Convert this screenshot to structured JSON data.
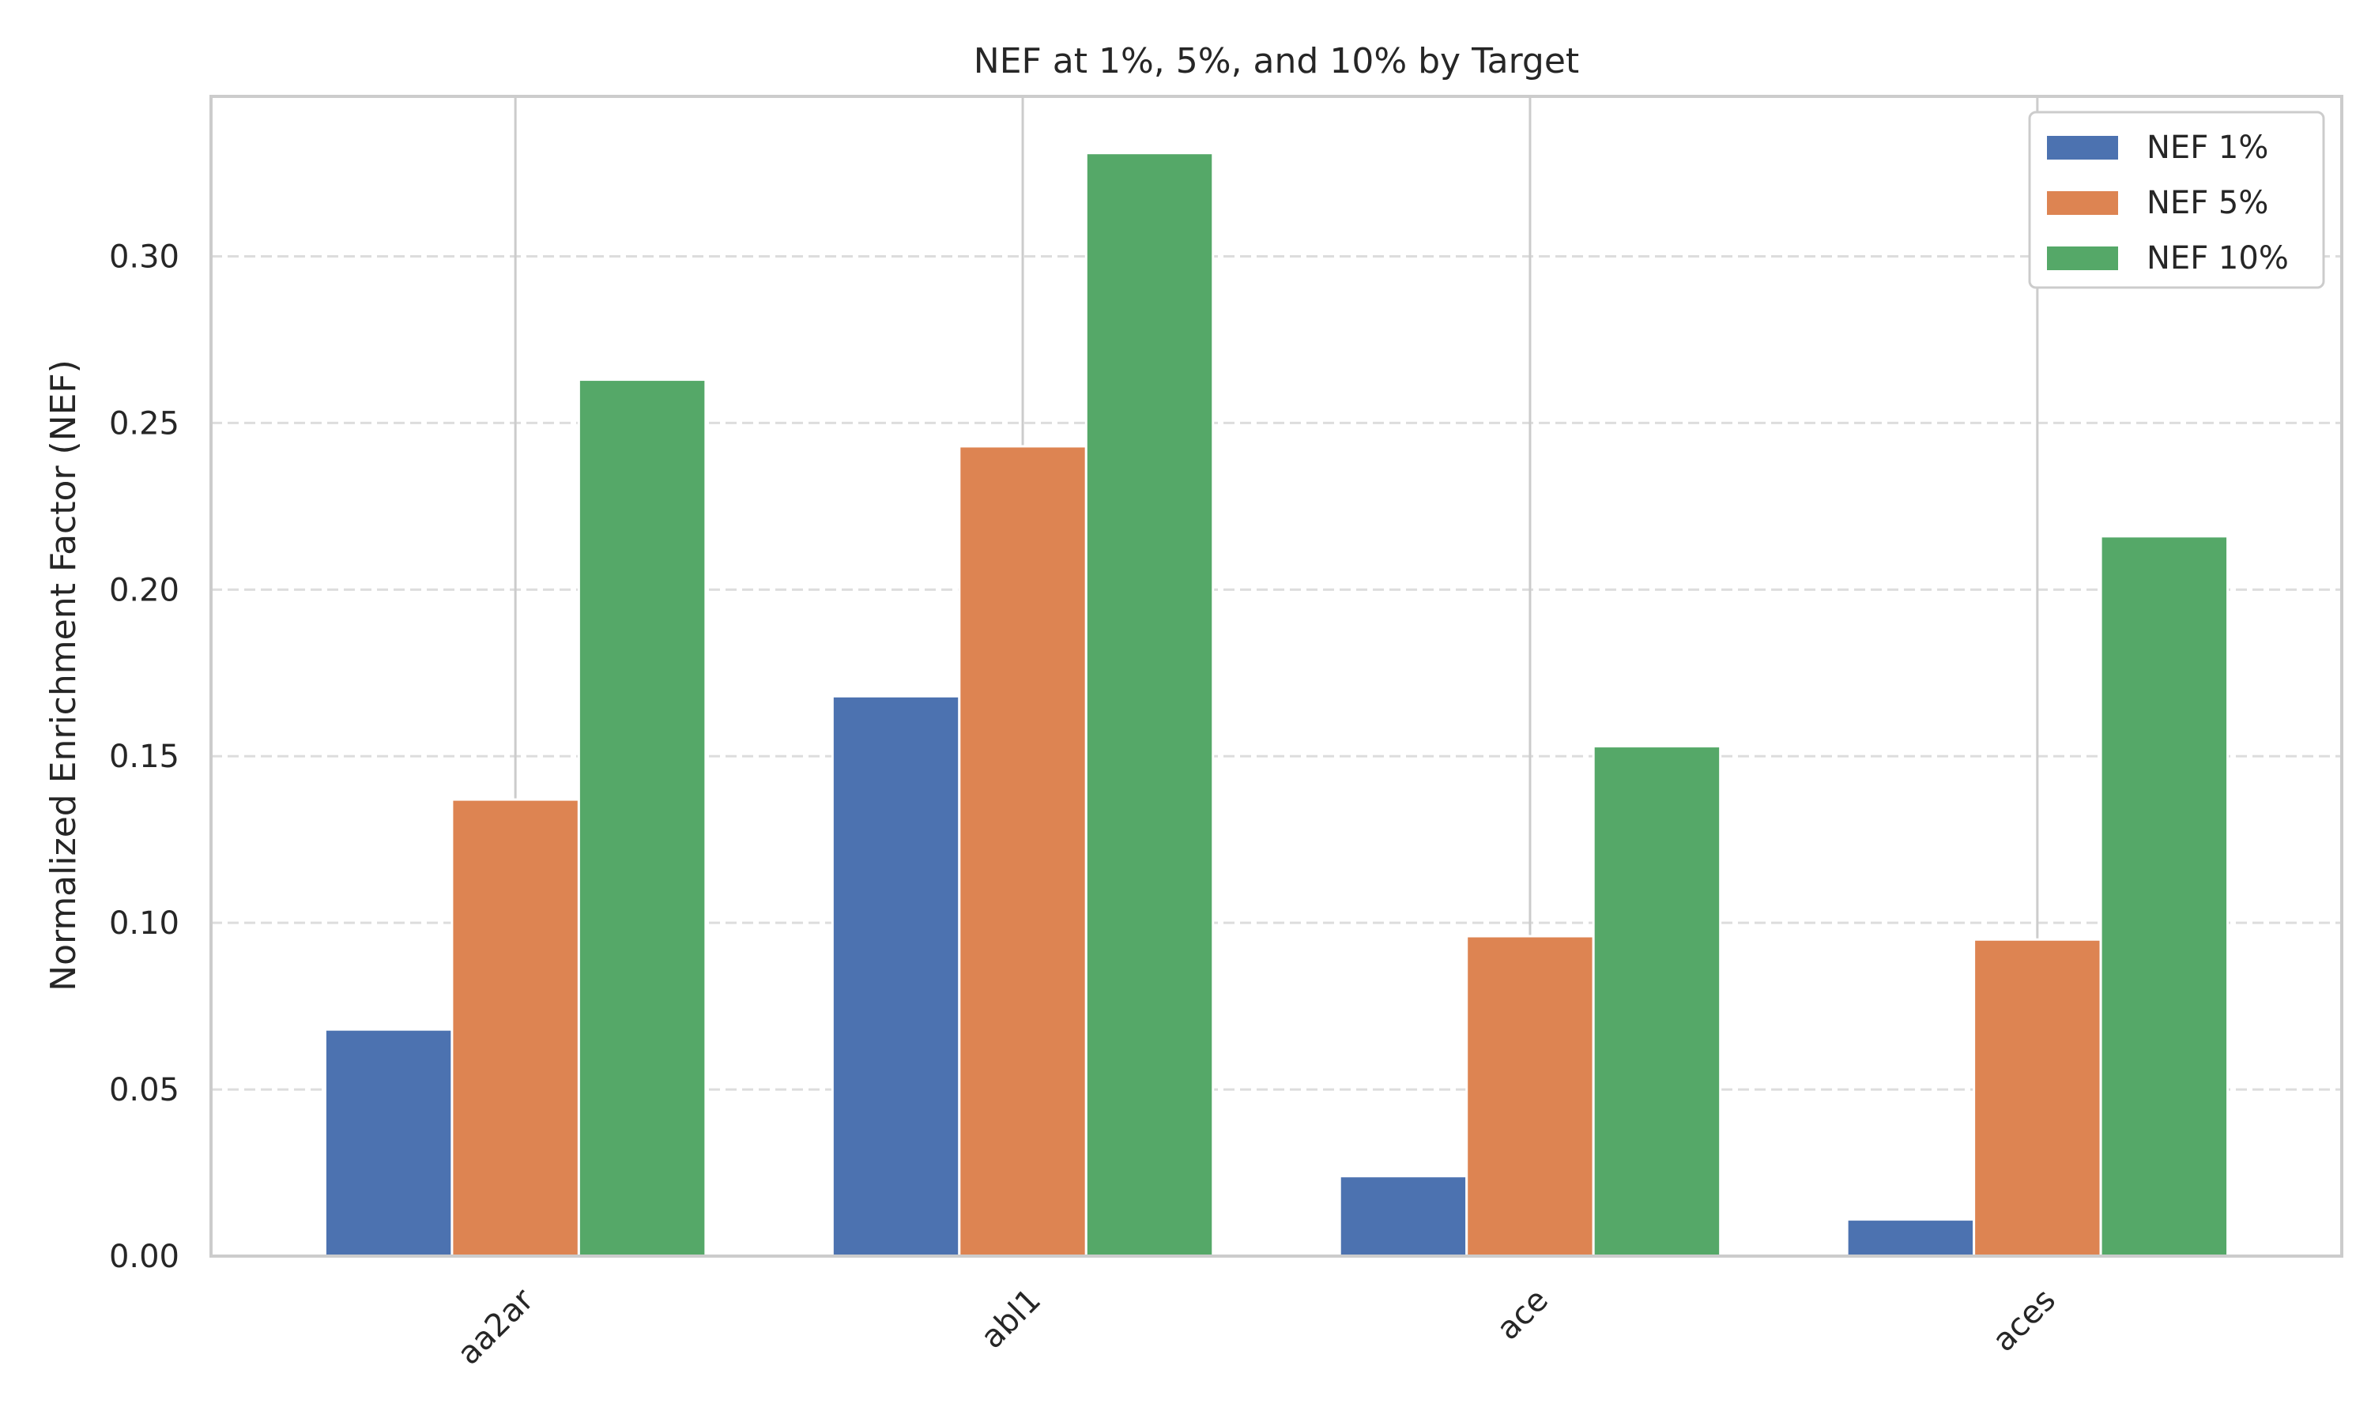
{
  "chart_data": {
    "type": "bar",
    "title": "NEF at 1%, 5%, and 10% by Target",
    "xlabel": "",
    "ylabel": "Normalized Enrichment Factor (NEF)",
    "categories": [
      "aa2ar",
      "abl1",
      "ace",
      "aces"
    ],
    "series": [
      {
        "name": "NEF 1%",
        "color": "#4c72b0",
        "values": [
          0.068,
          0.168,
          0.024,
          0.011
        ]
      },
      {
        "name": "NEF 5%",
        "color": "#dd8452",
        "values": [
          0.137,
          0.243,
          0.096,
          0.095
        ]
      },
      {
        "name": "NEF 10%",
        "color": "#55a868",
        "values": [
          0.263,
          0.331,
          0.153,
          0.216
        ]
      }
    ],
    "ylim": [
      0,
      0.348
    ],
    "yticks": [
      "0.00",
      "0.05",
      "0.10",
      "0.15",
      "0.20",
      "0.25",
      "0.30"
    ],
    "grid": "y dashed",
    "legend_position": "upper right"
  }
}
